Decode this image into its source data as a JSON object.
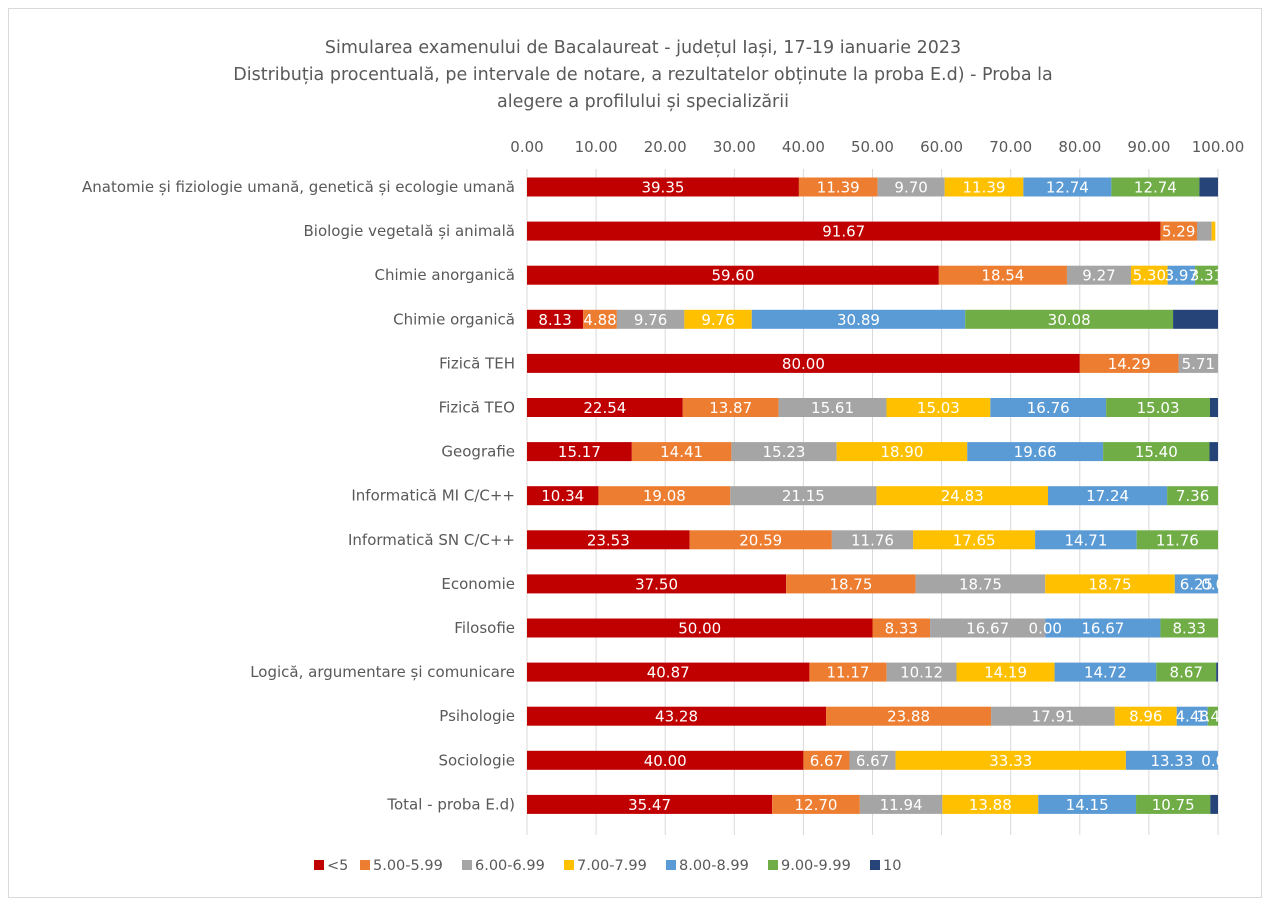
{
  "chart_data": {
    "type": "bar",
    "orientation": "horizontal-stacked",
    "title": [
      "Simularea examenului de Bacalaureat - județul Iași, 17-19 ianuarie 2023",
      "Distribuția procentuală, pe intervale de notare, a rezultatelor obținute la proba E.d) - Proba la",
      "alegere a profilului și specializării"
    ],
    "x_axis": {
      "position": "top",
      "range": [
        0,
        100
      ],
      "ticks": [
        "0.00",
        "10.00",
        "20.00",
        "30.00",
        "40.00",
        "50.00",
        "60.00",
        "70.00",
        "80.00",
        "90.00",
        "100.00"
      ]
    },
    "grid": true,
    "legend_position": "bottom",
    "categories": [
      "Anatomie și fiziologie umană, genetică și ecologie umană",
      "Biologie vegetală și animală",
      "Chimie anorganică",
      "Chimie organică",
      "Fizică TEH",
      "Fizică TEO",
      "Geografie",
      "Informatică MI C/C++",
      "Informatică SN C/C++",
      "Economie",
      "Filosofie",
      "Logică, argumentare și comunicare",
      "Psihologie",
      "Sociologie",
      "Total - proba E.d)"
    ],
    "series": [
      {
        "name": "<5",
        "color": "#c00000",
        "values": [
          39.35,
          91.67,
          59.6,
          8.13,
          80.0,
          22.54,
          15.17,
          10.34,
          23.53,
          37.5,
          50.0,
          40.87,
          43.28,
          40.0,
          35.47
        ],
        "labels": [
          "39.35",
          "91.67",
          "59.60",
          "8.13",
          "80.00",
          "22.54",
          "15.17",
          "10.34",
          "23.53",
          "37.50",
          "50.00",
          "40.87",
          "43.28",
          "40.00",
          "35.47"
        ]
      },
      {
        "name": "5.00-5.99",
        "color": "#ed7d31",
        "values": [
          11.39,
          5.29,
          18.54,
          4.88,
          14.29,
          13.87,
          14.41,
          19.08,
          20.59,
          18.75,
          8.33,
          11.17,
          23.88,
          6.67,
          12.7
        ],
        "labels": [
          "11.39",
          "5.29",
          "18.54",
          "4.88",
          "14.29",
          "13.87",
          "14.41",
          "19.08",
          "20.59",
          "18.75",
          "8.33",
          "11.17",
          "23.88",
          "6.67",
          "12.70"
        ]
      },
      {
        "name": "6.00-6.99",
        "color": "#a5a5a5",
        "values": [
          9.7,
          2.12,
          9.27,
          9.76,
          5.71,
          15.61,
          15.23,
          21.15,
          11.76,
          18.75,
          16.67,
          10.12,
          17.91,
          6.67,
          11.94
        ],
        "labels": [
          "9.70",
          "",
          "9.27",
          "9.76",
          "5.71",
          "15.61",
          "15.23",
          "21.15",
          "11.76",
          "18.75",
          "16.67",
          "10.12",
          "17.91",
          "6.67",
          "11.94"
        ]
      },
      {
        "name": "7.00-7.99",
        "color": "#ffc000",
        "values": [
          11.39,
          0.53,
          5.3,
          9.76,
          0,
          15.03,
          18.9,
          24.83,
          17.65,
          18.75,
          0.0,
          14.19,
          8.96,
          33.33,
          13.88
        ],
        "labels": [
          "11.39",
          "",
          "5.30",
          "9.76",
          "",
          "15.03",
          "18.90",
          "24.83",
          "17.65",
          "18.75",
          "0.00",
          "14.19",
          "8.96",
          "33.33",
          "13.88"
        ]
      },
      {
        "name": "8.00-8.99",
        "color": "#5b9bd5",
        "values": [
          12.74,
          0,
          3.97,
          30.89,
          0,
          16.76,
          19.66,
          17.24,
          14.71,
          6.25,
          16.67,
          14.72,
          4.48,
          13.33,
          14.15
        ],
        "labels": [
          "12.74",
          "",
          "3.97",
          "30.89",
          "",
          "16.76",
          "19.66",
          "17.24",
          "14.71",
          "6.25",
          "16.67",
          "14.72",
          "4.48",
          "13.33",
          "14.15"
        ]
      },
      {
        "name": "9.00-9.99",
        "color": "#70ad47",
        "values": [
          12.74,
          0,
          3.31,
          30.08,
          0,
          15.03,
          15.4,
          7.36,
          11.76,
          0,
          8.33,
          8.67,
          1.49,
          0.0,
          10.75
        ],
        "labels": [
          "12.74",
          "",
          "3.31",
          "30.08",
          "",
          "15.03",
          "15.40",
          "7.36",
          "11.76",
          "0.00",
          "8.33",
          "8.67",
          "1.49",
          "0.00",
          "10.75"
        ]
      },
      {
        "name": "10",
        "color": "#264478",
        "values": [
          2.69,
          0,
          0,
          6.5,
          0,
          1.16,
          1.23,
          0,
          0,
          0,
          0,
          0.26,
          0,
          0,
          1.11
        ],
        "labels": [
          "",
          "",
          "",
          "",
          "",
          "",
          "",
          "",
          "",
          "",
          "",
          "",
          "",
          "",
          ""
        ]
      }
    ]
  }
}
